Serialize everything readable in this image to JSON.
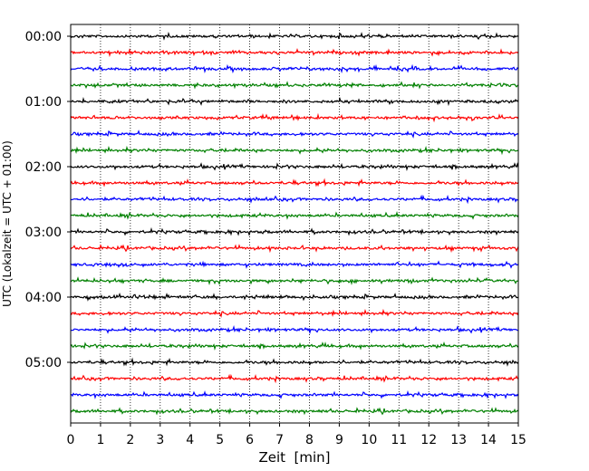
{
  "chart_data": {
    "type": "line",
    "title": "",
    "xlabel": "Zeit  [min]",
    "ylabel": "UTC (Lokalzeit = UTC + 01:00)",
    "xlim": [
      0,
      15
    ],
    "x_ticks": [
      "0",
      "1",
      "2",
      "3",
      "4",
      "5",
      "6",
      "7",
      "8",
      "9",
      "10",
      "11",
      "12",
      "13",
      "14",
      "15"
    ],
    "y_ticks": [
      "00:00",
      "01:00",
      "02:00",
      "03:00",
      "04:00",
      "05:00"
    ],
    "grid": "vertical dotted",
    "line_colors": [
      "#000000",
      "#ff0000",
      "#0000ff",
      "#008000"
    ],
    "traces_per_hour": 4,
    "trace_count": 24,
    "trace_start_times": [
      "00:00",
      "00:15",
      "00:30",
      "00:45",
      "01:00",
      "01:15",
      "01:30",
      "01:45",
      "02:00",
      "02:15",
      "02:30",
      "02:45",
      "03:00",
      "03:15",
      "03:30",
      "03:45",
      "04:00",
      "04:15",
      "04:30",
      "04:45",
      "05:00",
      "05:15",
      "05:30",
      "05:45"
    ]
  }
}
